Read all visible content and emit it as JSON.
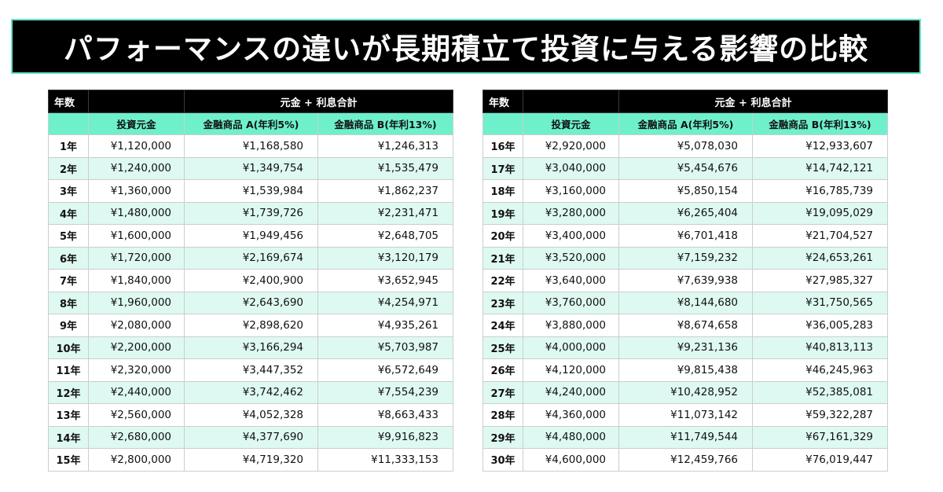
{
  "title": "パフォーマンスの違いが長期積立て投資に与える影響の比較",
  "colors": {
    "title_bg": "#000000",
    "title_border": "#5fe3c5",
    "header_bg": "#000000",
    "subheader_bg": "#6ff0cd",
    "stripe": "#def9f1"
  },
  "header": {
    "year_label": "年数",
    "total_label": "元金 + 利息合計",
    "principal_label": "投資元金",
    "productA_label": "金融商品 A(年利5%)",
    "productB_label": "金融商品 B(年利13%)"
  },
  "rows": [
    {
      "year": "1年",
      "principal": "¥1,120,000",
      "a": "¥1,168,580",
      "b": "¥1,246,313"
    },
    {
      "year": "2年",
      "principal": "¥1,240,000",
      "a": "¥1,349,754",
      "b": "¥1,535,479"
    },
    {
      "year": "3年",
      "principal": "¥1,360,000",
      "a": "¥1,539,984",
      "b": "¥1,862,237"
    },
    {
      "year": "4年",
      "principal": "¥1,480,000",
      "a": "¥1,739,726",
      "b": "¥2,231,471"
    },
    {
      "year": "5年",
      "principal": "¥1,600,000",
      "a": "¥1,949,456",
      "b": "¥2,648,705"
    },
    {
      "year": "6年",
      "principal": "¥1,720,000",
      "a": "¥2,169,674",
      "b": "¥3,120,179"
    },
    {
      "year": "7年",
      "principal": "¥1,840,000",
      "a": "¥2,400,900",
      "b": "¥3,652,945"
    },
    {
      "year": "8年",
      "principal": "¥1,960,000",
      "a": "¥2,643,690",
      "b": "¥4,254,971"
    },
    {
      "year": "9年",
      "principal": "¥2,080,000",
      "a": "¥2,898,620",
      "b": "¥4,935,261"
    },
    {
      "year": "10年",
      "principal": "¥2,200,000",
      "a": "¥3,166,294",
      "b": "¥5,703,987"
    },
    {
      "year": "11年",
      "principal": "¥2,320,000",
      "a": "¥3,447,352",
      "b": "¥6,572,649"
    },
    {
      "year": "12年",
      "principal": "¥2,440,000",
      "a": "¥3,742,462",
      "b": "¥7,554,239"
    },
    {
      "year": "13年",
      "principal": "¥2,560,000",
      "a": "¥4,052,328",
      "b": "¥8,663,433"
    },
    {
      "year": "14年",
      "principal": "¥2,680,000",
      "a": "¥4,377,690",
      "b": "¥9,916,823"
    },
    {
      "year": "15年",
      "principal": "¥2,800,000",
      "a": "¥4,719,320",
      "b": "¥11,333,153"
    },
    {
      "year": "16年",
      "principal": "¥2,920,000",
      "a": "¥5,078,030",
      "b": "¥12,933,607"
    },
    {
      "year": "17年",
      "principal": "¥3,040,000",
      "a": "¥5,454,676",
      "b": "¥14,742,121"
    },
    {
      "year": "18年",
      "principal": "¥3,160,000",
      "a": "¥5,850,154",
      "b": "¥16,785,739"
    },
    {
      "year": "19年",
      "principal": "¥3,280,000",
      "a": "¥6,265,404",
      "b": "¥19,095,029"
    },
    {
      "year": "20年",
      "principal": "¥3,400,000",
      "a": "¥6,701,418",
      "b": "¥21,704,527"
    },
    {
      "year": "21年",
      "principal": "¥3,520,000",
      "a": "¥7,159,232",
      "b": "¥24,653,261"
    },
    {
      "year": "22年",
      "principal": "¥3,640,000",
      "a": "¥7,639,938",
      "b": "¥27,985,327"
    },
    {
      "year": "23年",
      "principal": "¥3,760,000",
      "a": "¥8,144,680",
      "b": "¥31,750,565"
    },
    {
      "year": "24年",
      "principal": "¥3,880,000",
      "a": "¥8,674,658",
      "b": "¥36,005,283"
    },
    {
      "year": "25年",
      "principal": "¥4,000,000",
      "a": "¥9,231,136",
      "b": "¥40,813,113"
    },
    {
      "year": "26年",
      "principal": "¥4,120,000",
      "a": "¥9,815,438",
      "b": "¥46,245,963"
    },
    {
      "year": "27年",
      "principal": "¥4,240,000",
      "a": "¥10,428,952",
      "b": "¥52,385,081"
    },
    {
      "year": "28年",
      "principal": "¥4,360,000",
      "a": "¥11,073,142",
      "b": "¥59,322,287"
    },
    {
      "year": "29年",
      "principal": "¥4,480,000",
      "a": "¥11,749,544",
      "b": "¥67,161,329"
    },
    {
      "year": "30年",
      "principal": "¥4,600,000",
      "a": "¥12,459,766",
      "b": "¥76,019,447"
    }
  ]
}
